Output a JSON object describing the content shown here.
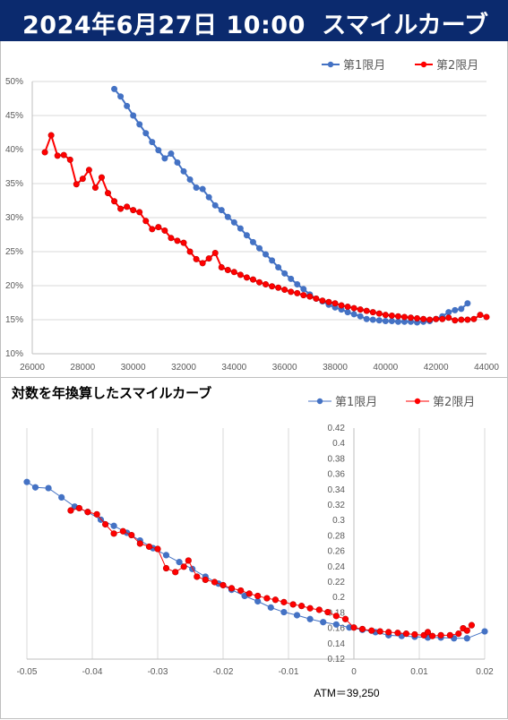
{
  "header": {
    "date": "2024年6月27日 10:00",
    "title": "スマイルカーブ"
  },
  "chart_data": [
    {
      "type": "line",
      "title": "",
      "legend_position": "top-right",
      "xlim": [
        26000,
        44000
      ],
      "ylim": [
        0.1,
        0.5
      ],
      "x_ticks": [
        "26000",
        "28000",
        "30000",
        "32000",
        "34000",
        "36000",
        "38000",
        "40000",
        "42000",
        "44000"
      ],
      "y_ticks": [
        "10%",
        "15%",
        "20%",
        "25%",
        "30%",
        "35%",
        "40%",
        "45%",
        "50%"
      ],
      "grid": "horizontal",
      "series": [
        {
          "name": "第1限月",
          "color": "#4472c4",
          "x": [
            29250,
            29500,
            29750,
            30000,
            30250,
            30500,
            30750,
            31000,
            31250,
            31500,
            31750,
            32000,
            32250,
            32500,
            32750,
            33000,
            33250,
            33500,
            33750,
            34000,
            34250,
            34500,
            34750,
            35000,
            35250,
            35500,
            35750,
            36000,
            36250,
            36500,
            36750,
            37000,
            37250,
            37500,
            37750,
            38000,
            38250,
            38500,
            38750,
            39000,
            39250,
            39500,
            39750,
            40000,
            40250,
            40500,
            40750,
            41000,
            41250,
            41500,
            41750,
            42000,
            42250,
            42500,
            42750,
            43000,
            43250
          ],
          "y": [
            0.489,
            0.478,
            0.464,
            0.45,
            0.437,
            0.424,
            0.411,
            0.399,
            0.387,
            0.394,
            0.381,
            0.368,
            0.356,
            0.344,
            0.342,
            0.33,
            0.318,
            0.311,
            0.301,
            0.293,
            0.284,
            0.274,
            0.264,
            0.255,
            0.246,
            0.237,
            0.227,
            0.218,
            0.21,
            0.202,
            0.195,
            0.187,
            0.181,
            0.177,
            0.172,
            0.168,
            0.165,
            0.161,
            0.158,
            0.155,
            0.151,
            0.15,
            0.149,
            0.148,
            0.148,
            0.147,
            0.147,
            0.147,
            0.146,
            0.147,
            0.148,
            0.151,
            0.155,
            0.161,
            0.164,
            0.166,
            0.174
          ]
        },
        {
          "name": "第2限月",
          "color": "#ff0000",
          "x": [
            26500,
            26750,
            27000,
            27250,
            27500,
            27750,
            28000,
            28250,
            28500,
            28750,
            29000,
            29250,
            29500,
            29750,
            30000,
            30250,
            30500,
            30750,
            31000,
            31250,
            31500,
            31750,
            32000,
            32250,
            32500,
            32750,
            33000,
            33250,
            33500,
            33750,
            34000,
            34250,
            34500,
            34750,
            35000,
            35250,
            35500,
            35750,
            36000,
            36250,
            36500,
            36750,
            37000,
            37250,
            37500,
            37750,
            38000,
            38250,
            38500,
            38750,
            39000,
            39250,
            39500,
            39750,
            40000,
            40250,
            40500,
            40750,
            41000,
            41250,
            41500,
            41750,
            42000,
            42250,
            42500,
            42750,
            43000,
            43250,
            43500,
            43750,
            44000
          ],
          "y": [
            0.396,
            0.421,
            0.391,
            0.392,
            0.385,
            0.349,
            0.357,
            0.37,
            0.344,
            0.359,
            0.336,
            0.324,
            0.313,
            0.316,
            0.311,
            0.308,
            0.295,
            0.283,
            0.286,
            0.281,
            0.27,
            0.266,
            0.263,
            0.25,
            0.239,
            0.233,
            0.24,
            0.248,
            0.227,
            0.223,
            0.22,
            0.216,
            0.212,
            0.209,
            0.205,
            0.202,
            0.199,
            0.197,
            0.194,
            0.191,
            0.189,
            0.186,
            0.184,
            0.181,
            0.178,
            0.176,
            0.174,
            0.171,
            0.169,
            0.167,
            0.165,
            0.163,
            0.161,
            0.159,
            0.157,
            0.156,
            0.155,
            0.154,
            0.153,
            0.152,
            0.151,
            0.15,
            0.151,
            0.151,
            0.153,
            0.149,
            0.15,
            0.15,
            0.151,
            0.157,
            0.154
          ]
        }
      ]
    },
    {
      "type": "line",
      "title": "対数を年換算したスマイルカーブ",
      "legend_position": "top-right",
      "xlim": [
        -0.05,
        0.02
      ],
      "ylim": [
        0.12,
        0.42
      ],
      "x_ticks": [
        "-0.05",
        "-0.04",
        "-0.03",
        "-0.02",
        "-0.01",
        "0",
        "0.01",
        "0.02"
      ],
      "y_ticks": [
        "0.12",
        "0.14",
        "0.16",
        "0.18",
        "0.2",
        "0.22",
        "0.24",
        "0.26",
        "0.28",
        "0.3",
        "0.32",
        "0.34",
        "0.36",
        "0.38",
        "0.4",
        "0.42"
      ],
      "grid": "vertical",
      "y_axis_at_x": 0,
      "annotation": "ATM＝39,250",
      "series": [
        {
          "name": "第1限月",
          "color": "#4472c4",
          "x": [
            -0.05,
            -0.0487,
            -0.0467,
            -0.0447,
            -0.0427,
            -0.0407,
            -0.0387,
            -0.0367,
            -0.0347,
            -0.0327,
            -0.0307,
            -0.0287,
            -0.0267,
            -0.0247,
            -0.0227,
            -0.0207,
            -0.0187,
            -0.0167,
            -0.0147,
            -0.0127,
            -0.0107,
            -0.0087,
            -0.0067,
            -0.0047,
            -0.0027,
            -0.0007,
            0.0013,
            0.0033,
            0.0053,
            0.0073,
            0.0093,
            0.0113,
            0.0133,
            0.0153,
            0.0173,
            0.02
          ],
          "y": [
            0.35,
            0.343,
            0.342,
            0.33,
            0.318,
            0.311,
            0.301,
            0.293,
            0.284,
            0.274,
            0.264,
            0.255,
            0.246,
            0.237,
            0.227,
            0.218,
            0.21,
            0.202,
            0.195,
            0.187,
            0.181,
            0.177,
            0.172,
            0.168,
            0.165,
            0.161,
            0.158,
            0.155,
            0.151,
            0.15,
            0.149,
            0.148,
            0.148,
            0.147,
            0.147,
            0.156
          ]
        },
        {
          "name": "第2限月",
          "color": "#ff0000",
          "x": [
            -0.0433,
            -0.042,
            -0.0407,
            -0.0393,
            -0.038,
            -0.0367,
            -0.0353,
            -0.034,
            -0.0327,
            -0.0313,
            -0.03,
            -0.0287,
            -0.0273,
            -0.026,
            -0.0253,
            -0.024,
            -0.0227,
            -0.0213,
            -0.02,
            -0.0187,
            -0.0173,
            -0.016,
            -0.0147,
            -0.0133,
            -0.012,
            -0.0107,
            -0.0093,
            -0.008,
            -0.0067,
            -0.0053,
            -0.004,
            -0.0027,
            -0.0013,
            0.0,
            0.0013,
            0.0027,
            0.004,
            0.0053,
            0.0067,
            0.008,
            0.0093,
            0.0107,
            0.0113,
            0.012,
            0.0133,
            0.0147,
            0.016,
            0.0167,
            0.0173,
            0.018
          ],
          "y": [
            0.313,
            0.316,
            0.311,
            0.308,
            0.295,
            0.283,
            0.286,
            0.281,
            0.27,
            0.266,
            0.263,
            0.238,
            0.233,
            0.24,
            0.248,
            0.227,
            0.223,
            0.22,
            0.216,
            0.212,
            0.209,
            0.205,
            0.202,
            0.199,
            0.197,
            0.194,
            0.191,
            0.189,
            0.186,
            0.184,
            0.181,
            0.176,
            0.172,
            0.161,
            0.159,
            0.157,
            0.156,
            0.155,
            0.154,
            0.153,
            0.152,
            0.151,
            0.155,
            0.15,
            0.151,
            0.151,
            0.153,
            0.16,
            0.157,
            0.164
          ]
        }
      ]
    }
  ]
}
